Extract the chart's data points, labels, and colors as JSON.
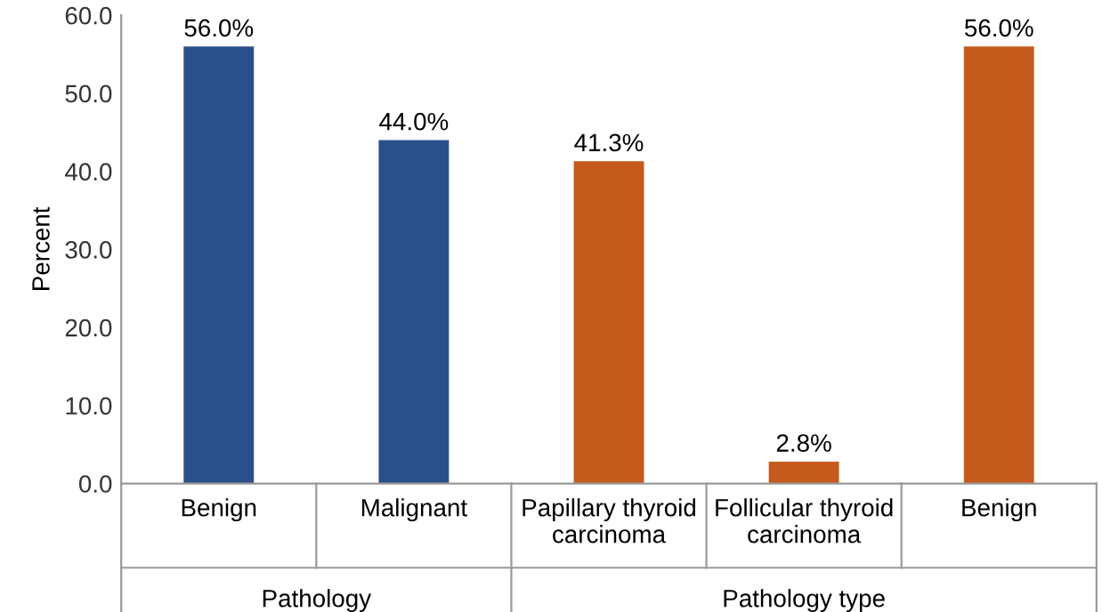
{
  "chart_data": {
    "type": "bar",
    "ylabel": "Percent",
    "categories": [
      "Benign",
      "Malignant",
      "Papillary thyroid carcinoma",
      "Follicular thyroid carcinoma",
      "Benign"
    ],
    "values": [
      56.0,
      44.0,
      41.3,
      2.8,
      56.0
    ],
    "colors": [
      "#2b4f8a",
      "#2b4f8a",
      "#c55a1d",
      "#c55a1d",
      "#c55a1d"
    ],
    "value_labels": [
      "56.0%",
      "44.0%",
      "41.3%",
      "2.8%",
      "56.0%"
    ],
    "ylim": [
      0,
      60
    ],
    "yticks": [
      {
        "value": 0,
        "label": "0.0"
      },
      {
        "value": 10,
        "label": "10.0"
      },
      {
        "value": 20,
        "label": "20.0"
      },
      {
        "value": 30,
        "label": "30.0"
      },
      {
        "value": 40,
        "label": "40.0"
      },
      {
        "value": 50,
        "label": "50.0"
      },
      {
        "value": 60,
        "label": "60.0"
      }
    ],
    "annotations": [
      "Pathology",
      "Pathology type"
    ],
    "grid": false
  }
}
